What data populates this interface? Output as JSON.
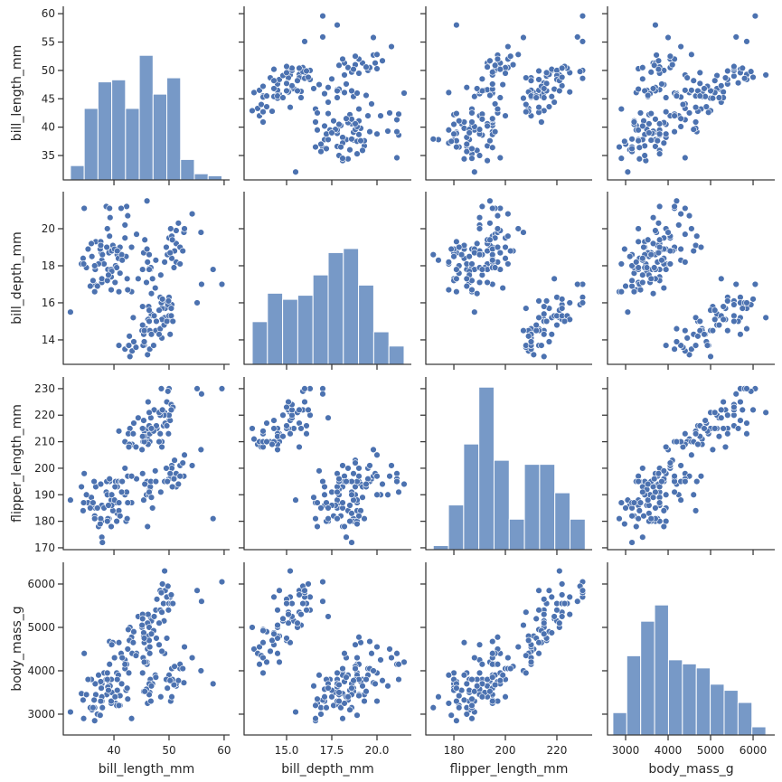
{
  "chart_data": {
    "type": "scatter",
    "variables": [
      "bill_length_mm",
      "bill_depth_mm",
      "flipper_length_mm",
      "body_mass_g"
    ],
    "axis_labels": [
      "bill_length_mm",
      "bill_depth_mm",
      "flipper_length_mm",
      "body_mass_g"
    ],
    "axis_ranges": [
      [
        30.8,
        61.3
      ],
      [
        12.65,
        22.0
      ],
      [
        169.2,
        234.4
      ],
      [
        2520,
        6510
      ]
    ],
    "x_ranges": [
      [
        30.8,
        61.0
      ],
      [
        12.65,
        21.9
      ],
      [
        169.1,
        233.7
      ],
      [
        2574,
        6510
      ]
    ],
    "y_ranges": [
      [
        30.7,
        61.3
      ],
      [
        12.68,
        22.0
      ],
      [
        169.3,
        234.4
      ],
      [
        2520,
        6500
      ]
    ],
    "x_ticks": [
      {
        "values": [
          40,
          50,
          60
        ],
        "labels": [
          "40",
          "50",
          "60"
        ]
      },
      {
        "values": [
          15,
          17.5,
          20
        ],
        "labels": [
          "15.0",
          "17.5",
          "20.0"
        ]
      },
      {
        "values": [
          180,
          200,
          220
        ],
        "labels": [
          "180",
          "200",
          "220"
        ]
      },
      {
        "values": [
          3000,
          4000,
          5000,
          6000
        ],
        "labels": [
          "3000",
          "4000",
          "5000",
          "6000"
        ]
      }
    ],
    "y_ticks": [
      {
        "values": [
          35,
          40,
          45,
          50,
          55,
          60
        ],
        "labels": [
          "35",
          "40",
          "45",
          "50",
          "55",
          "60"
        ]
      },
      {
        "values": [
          14,
          16,
          18,
          20
        ],
        "labels": [
          "14",
          "16",
          "18",
          "20"
        ]
      },
      {
        "values": [
          170,
          180,
          190,
          200,
          210,
          220,
          230
        ],
        "labels": [
          "170",
          "180",
          "190",
          "200",
          "210",
          "220",
          "230"
        ]
      },
      {
        "values": [
          3000,
          4000,
          5000,
          6000
        ],
        "labels": [
          "3000",
          "4000",
          "5000",
          "6000"
        ]
      }
    ],
    "histograms": [
      {
        "variable": "bill_length_mm",
        "bin_start": 32.1,
        "bin_end": 59.6,
        "counts": [
          7,
          35,
          48,
          49,
          35,
          61,
          42,
          50,
          10,
          3,
          2
        ]
      },
      {
        "variable": "bill_depth_mm",
        "bin_start": 13.1,
        "bin_end": 21.5,
        "counts": [
          21,
          35,
          32,
          34,
          44,
          55,
          57,
          39,
          16,
          9
        ]
      },
      {
        "variable": "flipper_length_mm",
        "bin_start": 172,
        "bin_end": 231,
        "counts": [
          2,
          22,
          52,
          80,
          44,
          15,
          42,
          42,
          28,
          15
        ]
      },
      {
        "variable": "body_mass_g",
        "bin_start": 2700,
        "bin_end": 6300,
        "counts": [
          11,
          39,
          56,
          64,
          37,
          35,
          33,
          25,
          22,
          16,
          4
        ]
      }
    ],
    "histogram_count_ylim": [
      0,
      85
    ],
    "grid": false,
    "colors": {
      "bar": "#7799c7",
      "point": "#4c72b0",
      "point_edge": "#ffffff",
      "spine": "#3b3b3b",
      "text": "#262626"
    },
    "points": [
      [
        39.1,
        18.7,
        181,
        3750
      ],
      [
        39.5,
        17.4,
        186,
        3800
      ],
      [
        40.3,
        18.0,
        195,
        3250
      ],
      [
        36.7,
        19.3,
        193,
        3450
      ],
      [
        39.3,
        20.6,
        190,
        3650
      ],
      [
        38.9,
        17.8,
        181,
        3625
      ],
      [
        39.2,
        19.6,
        195,
        4675
      ],
      [
        34.1,
        18.1,
        193,
        3475
      ],
      [
        42.0,
        20.2,
        190,
        4250
      ],
      [
        37.8,
        17.1,
        186,
        3300
      ],
      [
        37.8,
        17.3,
        180,
        3700
      ],
      [
        41.1,
        17.6,
        182,
        3200
      ],
      [
        38.6,
        21.2,
        191,
        3800
      ],
      [
        34.6,
        21.1,
        198,
        4400
      ],
      [
        36.6,
        17.8,
        185,
        3700
      ],
      [
        38.7,
        19.0,
        195,
        3450
      ],
      [
        42.5,
        20.7,
        197,
        4500
      ],
      [
        34.4,
        18.4,
        184,
        3325
      ],
      [
        46.0,
        21.5,
        194,
        4200
      ],
      [
        37.8,
        18.3,
        174,
        3400
      ],
      [
        37.7,
        18.7,
        180,
        3600
      ],
      [
        35.9,
        19.2,
        189,
        3800
      ],
      [
        38.2,
        18.1,
        185,
        3950
      ],
      [
        38.8,
        17.2,
        180,
        3800
      ],
      [
        35.3,
        18.9,
        187,
        3800
      ],
      [
        40.6,
        18.6,
        183,
        3550
      ],
      [
        40.5,
        17.9,
        187,
        3200
      ],
      [
        37.9,
        18.6,
        172,
        3150
      ],
      [
        40.5,
        18.9,
        180,
        3950
      ],
      [
        39.5,
        16.7,
        178,
        3250
      ],
      [
        37.2,
        18.1,
        178,
        3900
      ],
      [
        39.5,
        17.8,
        188,
        3300
      ],
      [
        40.9,
        18.9,
        184,
        3900
      ],
      [
        36.4,
        17.0,
        195,
        3325
      ],
      [
        39.2,
        21.1,
        196,
        4150
      ],
      [
        38.8,
        20.0,
        190,
        3950
      ],
      [
        42.2,
        18.5,
        180,
        3550
      ],
      [
        37.6,
        19.3,
        181,
        3300
      ],
      [
        39.8,
        19.1,
        184,
        4650
      ],
      [
        36.5,
        18.0,
        182,
        3150
      ],
      [
        40.8,
        18.4,
        195,
        3900
      ],
      [
        36.0,
        18.5,
        186,
        3100
      ],
      [
        44.1,
        19.7,
        196,
        4400
      ],
      [
        37.0,
        16.9,
        185,
        3000
      ],
      [
        39.6,
        18.8,
        190,
        4600
      ],
      [
        41.1,
        19.0,
        182,
        3425
      ],
      [
        37.5,
        18.9,
        179,
        2975
      ],
      [
        42.3,
        21.2,
        191,
        4150
      ],
      [
        39.6,
        17.7,
        186,
        3500
      ],
      [
        40.1,
        18.9,
        188,
        4300
      ],
      [
        35.0,
        17.9,
        190,
        3450
      ],
      [
        42.0,
        19.5,
        200,
        4050
      ],
      [
        34.5,
        18.1,
        187,
        2900
      ],
      [
        41.4,
        18.6,
        191,
        3700
      ],
      [
        39.0,
        17.5,
        186,
        3550
      ],
      [
        40.6,
        18.8,
        193,
        3800
      ],
      [
        36.5,
        16.6,
        181,
        2850
      ],
      [
        37.6,
        19.1,
        194,
        3750
      ],
      [
        35.7,
        16.9,
        185,
        3150
      ],
      [
        41.3,
        21.1,
        195,
        4400
      ],
      [
        32.1,
        15.5,
        188,
        3050
      ],
      [
        40.2,
        17.1,
        193,
        3400
      ],
      [
        43.2,
        19.0,
        197,
        4775
      ],
      [
        36.2,
        17.2,
        187,
        3150
      ],
      [
        41.5,
        18.3,
        195,
        4300
      ],
      [
        46.5,
        17.9,
        192,
        3500
      ],
      [
        50.0,
        19.5,
        196,
        3900
      ],
      [
        51.3,
        19.2,
        193,
        3650
      ],
      [
        45.4,
        18.7,
        188,
        3525
      ],
      [
        52.7,
        19.8,
        197,
        3725
      ],
      [
        45.2,
        17.8,
        198,
        3950
      ],
      [
        46.1,
        18.2,
        178,
        3250
      ],
      [
        51.3,
        18.2,
        197,
        3750
      ],
      [
        46.0,
        18.9,
        195,
        4150
      ],
      [
        51.3,
        19.9,
        198,
        3700
      ],
      [
        46.6,
        17.8,
        193,
        3800
      ],
      [
        51.7,
        20.3,
        194,
        3775
      ],
      [
        47.0,
        17.3,
        185,
        3700
      ],
      [
        52.0,
        18.1,
        201,
        4050
      ],
      [
        45.9,
        17.1,
        190,
        3575
      ],
      [
        50.5,
        19.6,
        201,
        4050
      ],
      [
        50.3,
        20.0,
        197,
        3300
      ],
      [
        58.0,
        17.8,
        181,
        3700
      ],
      [
        46.4,
        18.6,
        190,
        3450
      ],
      [
        49.2,
        18.2,
        195,
        4400
      ],
      [
        42.4,
        17.3,
        181,
        3600
      ],
      [
        48.5,
        17.5,
        191,
        3400
      ],
      [
        43.2,
        16.6,
        187,
        2900
      ],
      [
        50.6,
        19.4,
        193,
        3800
      ],
      [
        46.7,
        17.9,
        195,
        3300
      ],
      [
        52.0,
        19.0,
        197,
        4150
      ],
      [
        50.5,
        18.4,
        200,
        3400
      ],
      [
        49.5,
        19.0,
        200,
        3800
      ],
      [
        46.4,
        17.8,
        191,
        3700
      ],
      [
        52.8,
        20.0,
        205,
        4550
      ],
      [
        40.9,
        16.6,
        187,
        3200
      ],
      [
        54.2,
        20.8,
        201,
        4300
      ],
      [
        42.5,
        16.7,
        187,
        3350
      ],
      [
        51.0,
        18.8,
        203,
        4100
      ],
      [
        49.7,
        18.6,
        195,
        3600
      ],
      [
        47.5,
        16.8,
        199,
        3900
      ],
      [
        47.6,
        18.3,
        195,
        3850
      ],
      [
        52.5,
        18.8,
        202,
        4050
      ],
      [
        45.6,
        19.4,
        194,
        3525
      ],
      [
        55.8,
        19.8,
        207,
        4000
      ],
      [
        50.9,
        17.9,
        196,
        3675
      ],
      [
        46.8,
        16.5,
        189,
        3650
      ],
      [
        50.2,
        18.7,
        198,
        3775
      ],
      [
        46.1,
        13.2,
        211,
        4500
      ],
      [
        50.0,
        16.3,
        230,
        5700
      ],
      [
        48.7,
        14.1,
        210,
        4450
      ],
      [
        50.0,
        15.2,
        218,
        5700
      ],
      [
        47.6,
        14.5,
        215,
        5400
      ],
      [
        46.5,
        13.5,
        210,
        4550
      ],
      [
        45.4,
        14.6,
        211,
        4800
      ],
      [
        46.7,
        15.3,
        219,
        5200
      ],
      [
        43.3,
        13.4,
        209,
        4400
      ],
      [
        46.8,
        15.4,
        215,
        5150
      ],
      [
        40.9,
        13.7,
        214,
        4650
      ],
      [
        49.0,
        16.1,
        216,
        5550
      ],
      [
        45.5,
        13.7,
        214,
        4650
      ],
      [
        48.4,
        14.6,
        213,
        5850
      ],
      [
        45.8,
        14.6,
        210,
        4200
      ],
      [
        49.3,
        15.7,
        217,
        5850
      ],
      [
        42.0,
        13.5,
        210,
        4150
      ],
      [
        49.2,
        15.2,
        221,
        6300
      ],
      [
        46.2,
        14.5,
        209,
        4800
      ],
      [
        48.7,
        15.1,
        222,
        5350
      ],
      [
        50.2,
        14.3,
        218,
        5700
      ],
      [
        45.1,
        14.5,
        215,
        5000
      ],
      [
        46.5,
        14.5,
        213,
        4400
      ],
      [
        46.3,
        15.8,
        215,
        5050
      ],
      [
        42.9,
        13.1,
        215,
        5000
      ],
      [
        46.1,
        15.1,
        215,
        5100
      ],
      [
        47.8,
        15.0,
        215,
        5650
      ],
      [
        48.2,
        14.3,
        210,
        4600
      ],
      [
        50.0,
        15.3,
        220,
        5550
      ],
      [
        47.3,
        15.3,
        222,
        5250
      ],
      [
        42.8,
        14.2,
        209,
        4700
      ],
      [
        45.1,
        14.5,
        207,
        5050
      ],
      [
        59.6,
        17.0,
        230,
        6050
      ],
      [
        49.1,
        14.8,
        220,
        5150
      ],
      [
        48.4,
        16.3,
        220,
        5400
      ],
      [
        42.6,
        13.7,
        213,
        4950
      ],
      [
        44.4,
        17.3,
        219,
        5250
      ],
      [
        44.0,
        13.6,
        208,
        4350
      ],
      [
        48.7,
        15.7,
        208,
        5350
      ],
      [
        42.7,
        13.7,
        208,
        3950
      ],
      [
        49.6,
        16.0,
        225,
        5700
      ],
      [
        45.3,
        13.7,
        210,
        4300
      ],
      [
        49.6,
        15.0,
        216,
        4750
      ],
      [
        50.5,
        15.9,
        222,
        5550
      ],
      [
        43.6,
        13.9,
        217,
        4900
      ],
      [
        45.5,
        13.9,
        210,
        4200
      ],
      [
        50.4,
        15.3,
        224,
        5550
      ],
      [
        46.2,
        15.1,
        225,
        5300
      ],
      [
        45.4,
        14.3,
        218,
        4875
      ],
      [
        46.4,
        15.0,
        216,
        4700
      ],
      [
        48.6,
        16.0,
        230,
        5800
      ],
      [
        45.2,
        15.8,
        215,
        5300
      ],
      [
        45.5,
        14.5,
        212,
        4750
      ],
      [
        55.9,
        17.0,
        228,
        5600
      ],
      [
        49.8,
        15.9,
        229,
        5950
      ],
      [
        43.5,
        15.2,
        213,
        4650
      ],
      [
        50.7,
        15.0,
        223,
        5550
      ],
      [
        47.7,
        15.0,
        216,
        4750
      ],
      [
        46.4,
        15.6,
        221,
        5000
      ],
      [
        48.2,
        15.6,
        221,
        5100
      ],
      [
        55.1,
        16.0,
        230,
        5850
      ],
      [
        48.8,
        16.2,
        222,
        6000
      ],
      [
        47.2,
        13.7,
        214,
        4925
      ],
      [
        46.8,
        14.3,
        215,
        4850
      ],
      [
        50.4,
        15.7,
        222,
        5750
      ],
      [
        45.2,
        14.8,
        212,
        5200
      ],
      [
        49.9,
        16.1,
        213,
        5400
      ]
    ]
  }
}
